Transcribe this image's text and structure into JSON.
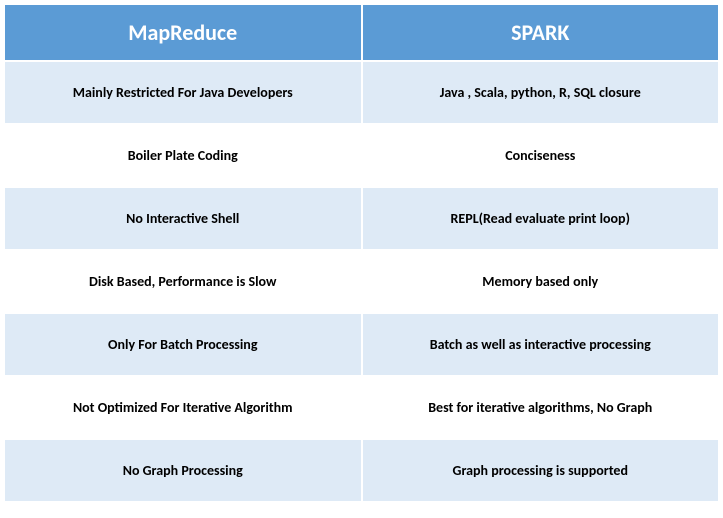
{
  "table": {
    "header_bg": "#5b9bd5",
    "header_color": "#ffffff",
    "header_fontsize": "22px",
    "cell_fontsize": "14px",
    "row_odd_bg": "#deeaf6",
    "row_even_bg": "#ffffff",
    "columns": [
      "MapReduce",
      "SPARK"
    ],
    "rows": [
      [
        "Mainly Restricted For Java Developers",
        "Java , Scala, python, R, SQL closure"
      ],
      [
        "Boiler Plate Coding",
        "Conciseness"
      ],
      [
        "No Interactive Shell",
        "REPL(Read evaluate print loop)"
      ],
      [
        "Disk Based, Performance is Slow",
        "Memory based only"
      ],
      [
        "Only For Batch Processing",
        "Batch as well as interactive processing"
      ],
      [
        "Not Optimized For Iterative Algorithm",
        "Best for iterative algorithms, No Graph"
      ],
      [
        "No Graph Processing",
        "Graph processing is supported"
      ]
    ]
  }
}
